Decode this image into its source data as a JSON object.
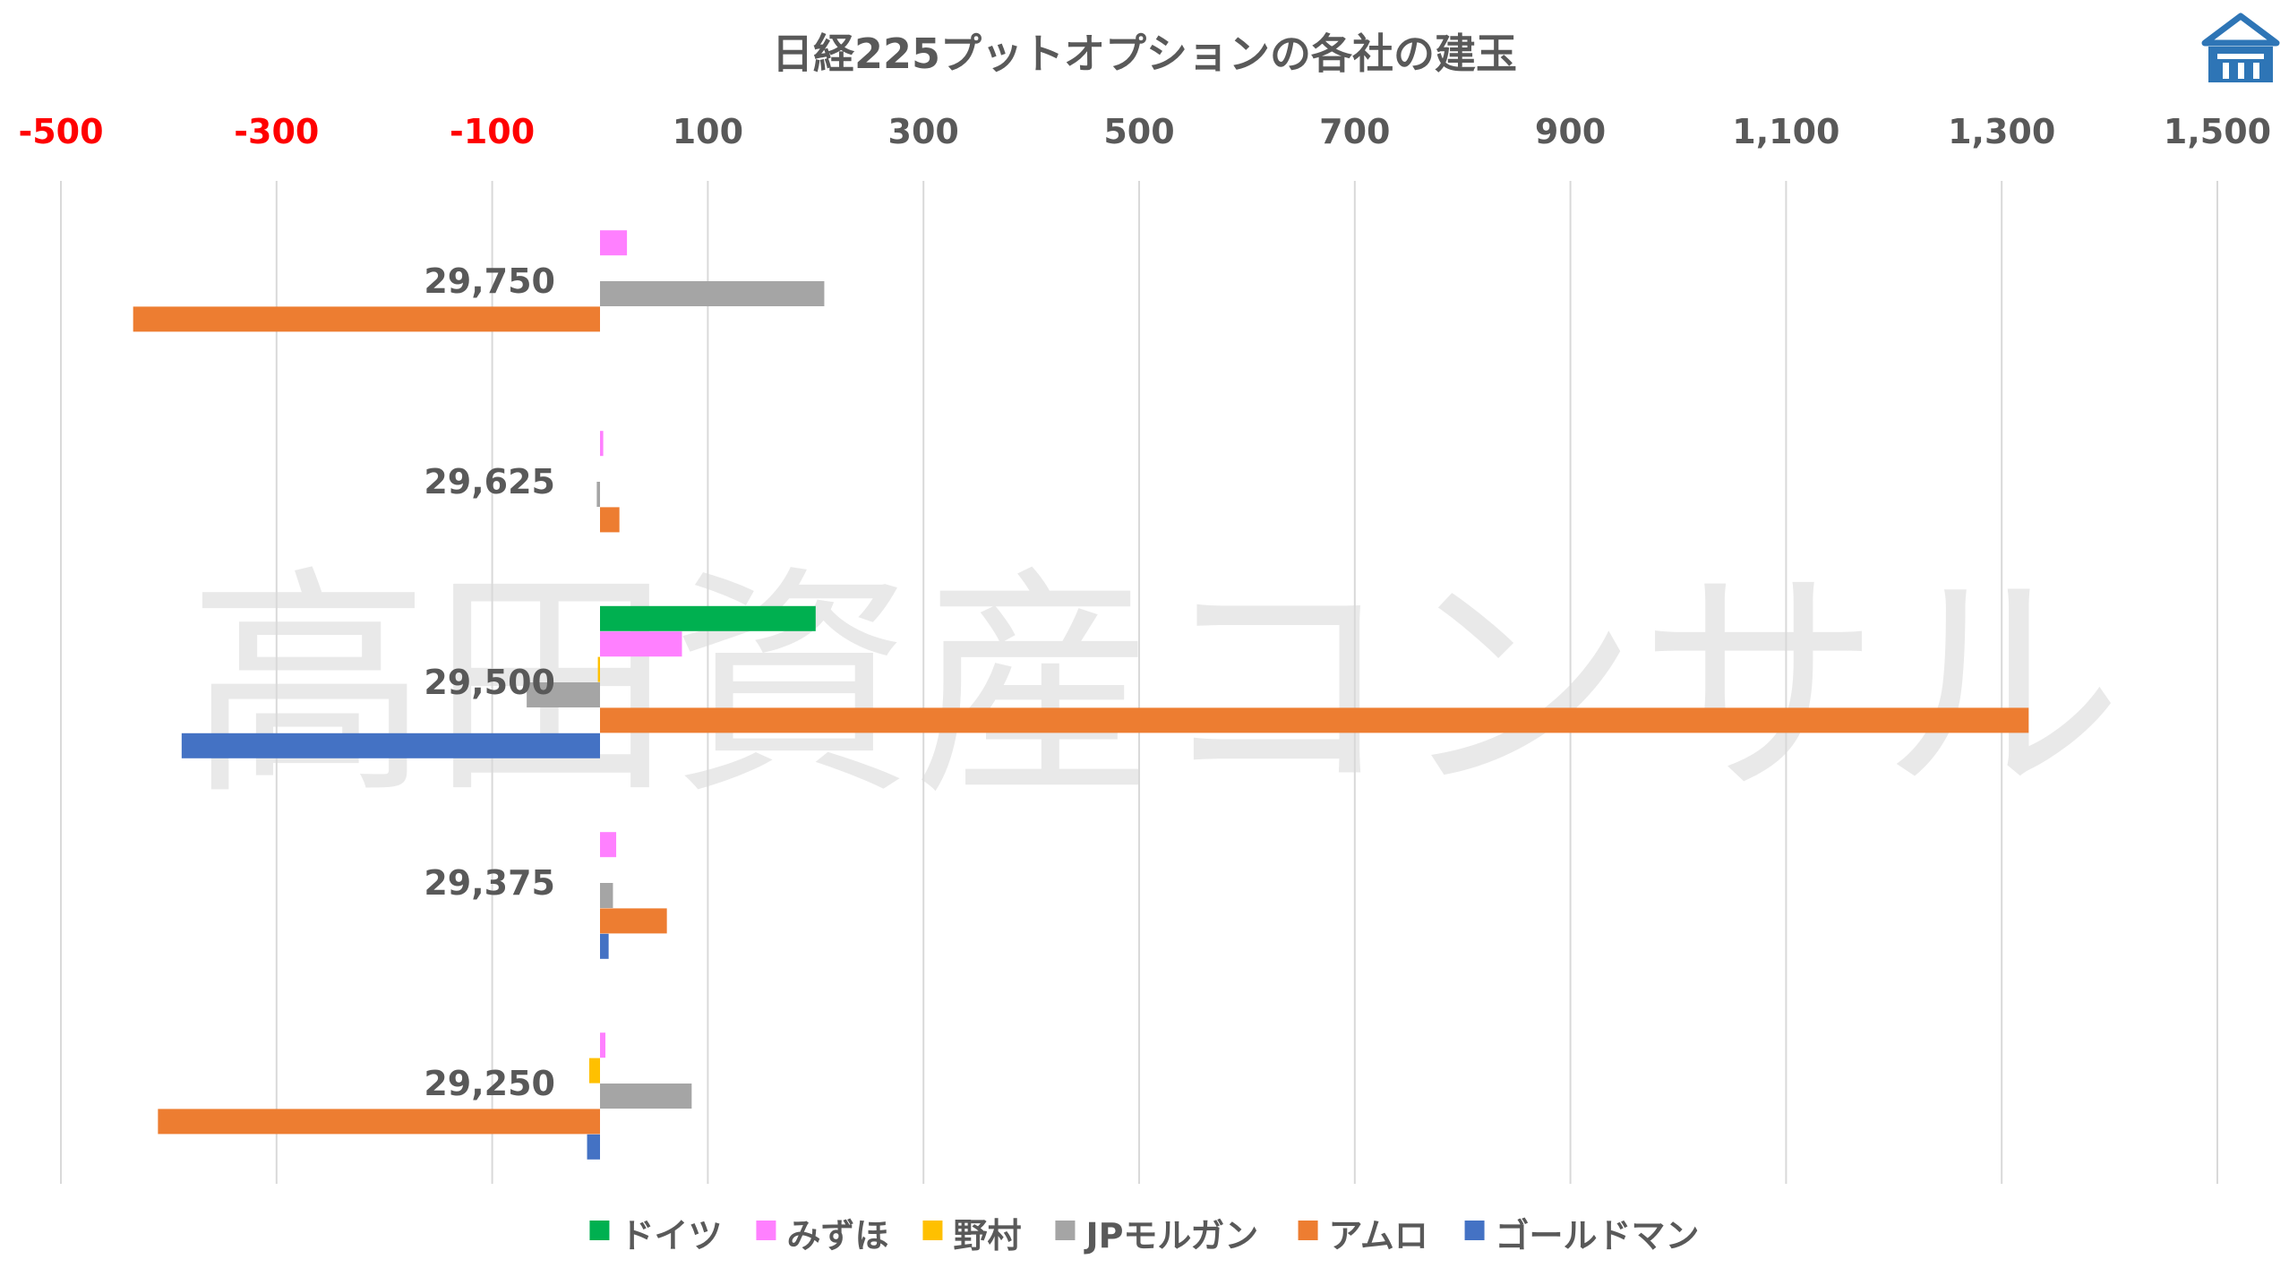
{
  "watermark": "高田資産コンサル",
  "logo": {
    "name": "building-logo",
    "color": "#2E75B6"
  },
  "chart_data": {
    "type": "bar",
    "orientation": "horizontal",
    "title": "日経225プットオプションの各社の建玉",
    "xlim": [
      -500,
      1500
    ],
    "x_ticks": [
      -500,
      -300,
      -100,
      100,
      300,
      500,
      700,
      900,
      1100,
      1300,
      1500
    ],
    "x_tick_labels": [
      "-500",
      "-300",
      "-100",
      "100",
      "300",
      "500",
      "700",
      "900",
      "1,100",
      "1,300",
      "1,500"
    ],
    "negative_tick_color": "#FF0000",
    "positive_tick_color": "#595959",
    "grid": "vertical",
    "legend_position": "bottom",
    "categories": [
      "29,750",
      "29,625",
      "29,500",
      "29,375",
      "29,250"
    ],
    "series": [
      {
        "name": "ドイツ",
        "color": "#00B050",
        "values": [
          0,
          0,
          200,
          0,
          0
        ]
      },
      {
        "name": "みずほ",
        "color": "#FF80FF",
        "values": [
          25,
          3,
          76,
          15,
          5
        ]
      },
      {
        "name": "野村",
        "color": "#FFC000",
        "values": [
          0,
          0,
          -2,
          0,
          -10
        ]
      },
      {
        "name": "JPモルガン",
        "color": "#A5A5A5",
        "values": [
          208,
          -3,
          -68,
          12,
          85
        ]
      },
      {
        "name": "アムロ",
        "color": "#ED7D31",
        "values": [
          -433,
          18,
          1325,
          62,
          -410
        ]
      },
      {
        "name": "ゴールドマン",
        "color": "#4472C4",
        "values": [
          0,
          0,
          -388,
          8,
          -12
        ]
      }
    ]
  }
}
